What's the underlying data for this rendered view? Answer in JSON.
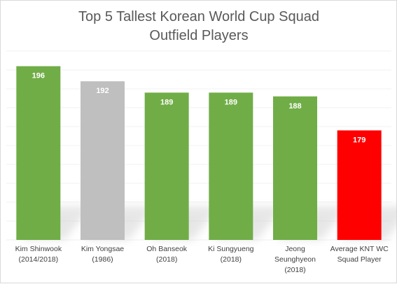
{
  "chart_data": {
    "type": "bar",
    "title": "Top 5 Tallest Korean World Cup Squad Outfield Players",
    "title_lines": [
      "Top 5 Tallest Korean World Cup Squad",
      "Outfield Players"
    ],
    "categories": [
      "Kim Shinwook (2014/2018)",
      "Kim Yongsae (1986)",
      "Oh Banseok (2018)",
      "Ki Sungyueng (2018)",
      "Jeong Seunghyeon (2018)",
      "Average KNT WC Squad Player"
    ],
    "category_lines": [
      [
        "Kim Shinwook",
        "(2014/2018)"
      ],
      [
        "Kim Yongsae",
        "(1986)"
      ],
      [
        "Oh Banseok",
        "(2018)"
      ],
      [
        "Ki Sungyueng",
        "(2018)"
      ],
      [
        "Jeong",
        "Seunghyeon",
        "(2018)"
      ],
      [
        "Average KNT WC",
        "Squad Player"
      ]
    ],
    "values": [
      196,
      192,
      189,
      189,
      188,
      179
    ],
    "data_labels": [
      "196",
      "192",
      "189",
      "189",
      "188",
      "179"
    ],
    "bar_colors": [
      "#70ad47",
      "#bfbfbf",
      "#70ad47",
      "#70ad47",
      "#70ad47",
      "#ff0000"
    ],
    "xlabel": "",
    "ylabel": "",
    "ylim": [
      150,
      200
    ],
    "grid": true,
    "legend": "none"
  }
}
